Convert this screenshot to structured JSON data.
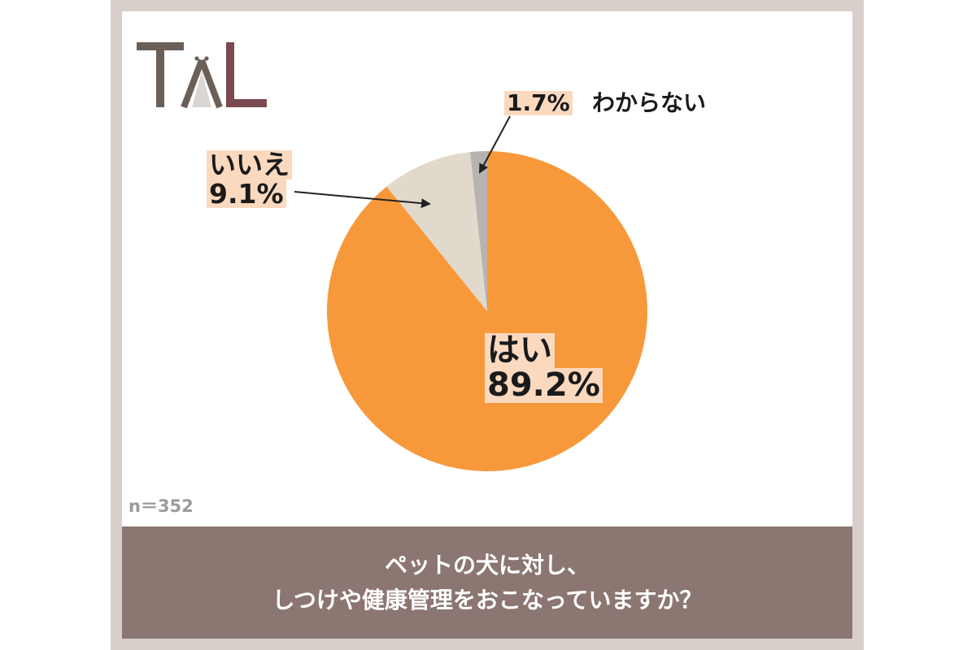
{
  "brand": {
    "logo_text": "TAL",
    "colors": {
      "t": "#6b5f57",
      "l": "#7a4a50",
      "a_fill": "#d9d6d3",
      "a_stroke": "#6b5f57"
    }
  },
  "chart_data": {
    "type": "pie",
    "slices": [
      {
        "label": "はい",
        "value": 89.2,
        "value_label": "89.2%",
        "color": "#f7993a"
      },
      {
        "label": "いいえ",
        "value": 9.1,
        "value_label": "9.1%",
        "color": "#e1d9cb"
      },
      {
        "label": "わからない",
        "value": 1.7,
        "value_label": "1.7%",
        "color": "#b6b3b1"
      }
    ],
    "start": "12 o'clock",
    "direction": "clockwise"
  },
  "sample_size": "n＝352",
  "question": {
    "line1": "ペットの犬に対し、",
    "line2": "しつけや健康管理をおこなっていますか？"
  }
}
